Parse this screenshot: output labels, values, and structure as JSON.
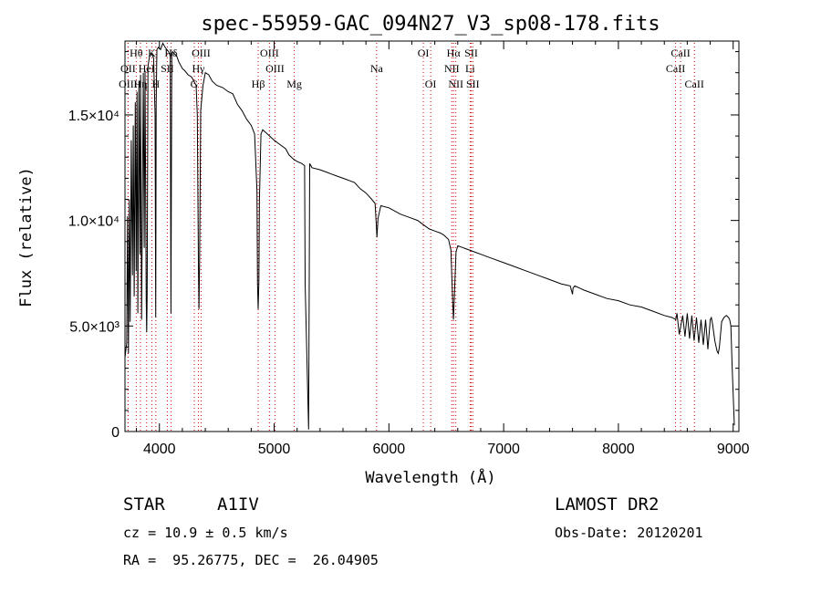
{
  "chart_data": {
    "type": "line",
    "title": "spec-55959-GAC_094N27_V3_sp08-178.fits",
    "xlabel": "Wavelength (Å)",
    "ylabel": "Flux (relative)",
    "xlim": [
      3700,
      9050
    ],
    "ylim": [
      0,
      18500
    ],
    "xticks": [
      4000,
      5000,
      6000,
      7000,
      8000,
      9000
    ],
    "yticks": [
      {
        "value": 0,
        "label": "0"
      },
      {
        "value": 5000,
        "label": "5.0×10³"
      },
      {
        "value": 10000,
        "label": "1.0×10⁴"
      },
      {
        "value": 15000,
        "label": "1.5×10⁴"
      }
    ],
    "line_color": "#000000",
    "marker_color": "#cc0000",
    "series": [
      {
        "x": [
          3700,
          3715,
          3722,
          3730,
          3738,
          3745,
          3755,
          3765,
          3772,
          3780,
          3790,
          3798,
          3805,
          3812,
          3822,
          3830,
          3836,
          3845,
          3860,
          3868,
          3875,
          3885,
          3889,
          3893,
          3900,
          3915,
          3930,
          3950,
          3962,
          3968,
          3972,
          3978,
          3990,
          4010,
          4030,
          4050,
          4080,
          4094,
          4101,
          4108,
          4115,
          4130,
          4150,
          4170,
          4200,
          4220,
          4250,
          4280,
          4300,
          4320,
          4330,
          4340,
          4345,
          4350,
          4360,
          4380,
          4400,
          4430,
          4460,
          4500,
          4550,
          4600,
          4640,
          4680,
          4720,
          4760,
          4800,
          4830,
          4850,
          4855,
          4861,
          4867,
          4872,
          4885,
          4900,
          4940,
          4980,
          5000,
          5050,
          5100,
          5130,
          5170,
          5200,
          5240,
          5265,
          5270,
          5300,
          5305,
          5310,
          5330,
          5400,
          5450,
          5500,
          5550,
          5600,
          5650,
          5700,
          5750,
          5800,
          5850,
          5880,
          5890,
          5896,
          5905,
          5930,
          6000,
          6100,
          6200,
          6250,
          6300,
          6350,
          6400,
          6450,
          6480,
          6520,
          6540,
          6556,
          6563,
          6570,
          6585,
          6600,
          6650,
          6700,
          6750,
          6800,
          6900,
          7000,
          7100,
          7200,
          7300,
          7400,
          7500,
          7580,
          7600,
          7605,
          7620,
          7700,
          7800,
          7900,
          8000,
          8100,
          8200,
          8300,
          8400,
          8470,
          8500,
          8510,
          8530,
          8560,
          8580,
          8600,
          8620,
          8640,
          8660,
          8680,
          8700,
          8720,
          8740,
          8760,
          8780,
          8800,
          8810,
          8820,
          8840,
          8860,
          8870,
          8880,
          8900,
          8920,
          8940,
          8960,
          8970,
          8980,
          8990,
          9000,
          9010
        ],
        "y": [
          3500,
          4200,
          10200,
          3700,
          11000,
          5200,
          13800,
          7400,
          14500,
          6400,
          15600,
          7600,
          16100,
          5600,
          16600,
          8400,
          16900,
          5300,
          17000,
          8700,
          17100,
          6200,
          4700,
          6400,
          17300,
          17800,
          17900,
          17700,
          15000,
          5400,
          15500,
          18100,
          18200,
          18100,
          18400,
          18200,
          18000,
          17800,
          5600,
          17900,
          18000,
          17900,
          17800,
          17500,
          17200,
          17100,
          16900,
          16800,
          16600,
          16400,
          15000,
          8000,
          5800,
          8100,
          15200,
          16400,
          17000,
          16900,
          16600,
          16400,
          16300,
          16100,
          16000,
          15500,
          15200,
          14800,
          14500,
          14100,
          11400,
          7000,
          5800,
          7100,
          11000,
          14100,
          14300,
          14100,
          13900,
          13800,
          13600,
          13400,
          13100,
          12900,
          12800,
          12700,
          12600,
          7000,
          100,
          6200,
          12700,
          12500,
          12400,
          12300,
          12200,
          12100,
          12000,
          11900,
          11800,
          11500,
          11300,
          11000,
          10800,
          9800,
          9200,
          10100,
          10700,
          10600,
          10300,
          10100,
          10000,
          9800,
          9600,
          9500,
          9400,
          9300,
          9100,
          8600,
          6100,
          5300,
          6300,
          8500,
          8800,
          8700,
          8600,
          8500,
          8400,
          8200,
          8000,
          7800,
          7600,
          7400,
          7200,
          7000,
          6900,
          6500,
          6800,
          6900,
          6700,
          6500,
          6300,
          6200,
          6000,
          5900,
          5700,
          5500,
          5400,
          5300,
          5600,
          4600,
          5500,
          4500,
          5600,
          4400,
          5500,
          4300,
          5400,
          4200,
          5300,
          4100,
          5300,
          3900,
          5300,
          5400,
          5100,
          4300,
          3800,
          3700,
          4000,
          5200,
          5400,
          5500,
          5400,
          5300,
          5000,
          3200,
          1800,
          300
        ],
        "name": ""
      }
    ],
    "line_markers": [
      {
        "label": "Hθ",
        "x": 3798,
        "row": 0
      },
      {
        "label": "OII",
        "x": 3727,
        "row": 1
      },
      {
        "label": "OIII",
        "x": 3727,
        "row": 2
      },
      {
        "label": "Hη",
        "x": 3835,
        "row": 2
      },
      {
        "label": "HeI",
        "x": 3889,
        "row": 1
      },
      {
        "label": "K",
        "x": 3934,
        "row": 0
      },
      {
        "label": "SII",
        "x": 4069,
        "row": 1
      },
      {
        "label": "H",
        "x": 3969,
        "row": 2
      },
      {
        "label": "Hδ",
        "x": 4102,
        "row": 0
      },
      {
        "label": "OIII",
        "x": 4363,
        "row": 0
      },
      {
        "label": "Hγ",
        "x": 4340,
        "row": 1
      },
      {
        "label": "G",
        "x": 4304,
        "row": 2
      },
      {
        "label": "Hβ",
        "x": 4861,
        "row": 2
      },
      {
        "label": "OIII",
        "x": 4959,
        "row": 0
      },
      {
        "label": "OIII",
        "x": 5007,
        "row": 1
      },
      {
        "label": "Mg",
        "x": 5175,
        "row": 2
      },
      {
        "label": "Na",
        "x": 5893,
        "row": 1
      },
      {
        "label": "OI",
        "x": 6300,
        "row": 0
      },
      {
        "label": "OI",
        "x": 6364,
        "row": 2
      },
      {
        "label": "Hα",
        "x": 6563,
        "row": 0
      },
      {
        "label": "NII",
        "x": 6548,
        "row": 1
      },
      {
        "label": "NII",
        "x": 6583,
        "row": 2
      },
      {
        "label": "SII",
        "x": 6717,
        "row": 0
      },
      {
        "label": "Li",
        "x": 6708,
        "row": 1
      },
      {
        "label": "SII",
        "x": 6731,
        "row": 2
      },
      {
        "label": "CaII",
        "x": 8498,
        "row": 1
      },
      {
        "label": "CaII",
        "x": 8542,
        "row": 0
      },
      {
        "label": "CaII",
        "x": 8662,
        "row": 2
      }
    ]
  },
  "info": {
    "object_class": "STAR",
    "subclass": "A1IV",
    "survey": "LAMOST DR2",
    "cz": "cz = 10.9 ± 0.5 km/s",
    "obs_date": "Obs-Date: 20120201",
    "coords": "RA =  95.26775, DEC =  26.04905"
  }
}
